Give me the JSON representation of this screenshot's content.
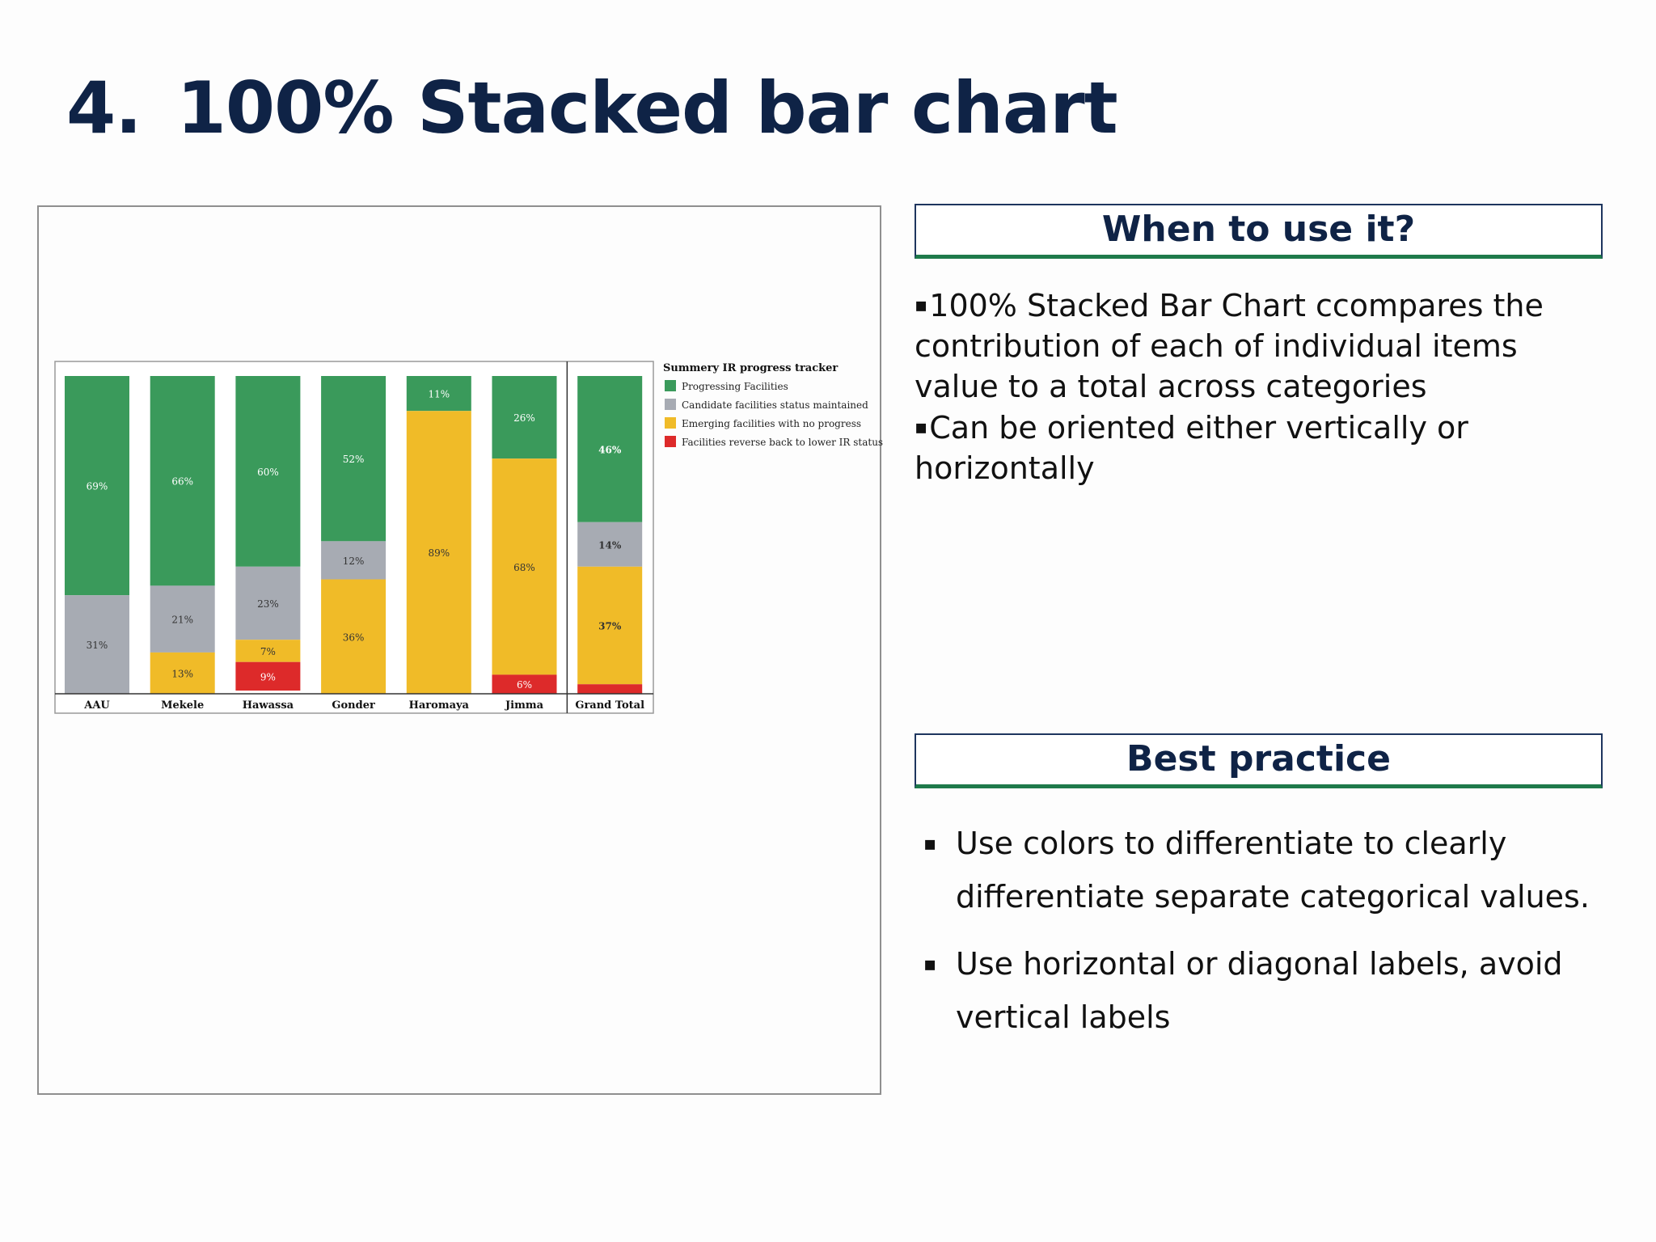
{
  "slide": {
    "number": "4.",
    "title": "100% Stacked bar chart"
  },
  "when": {
    "heading": "When to use it?",
    "bullets": [
      "100% Stacked Bar Chart ccompares the contribution of each of individual items value to a total across categories",
      "Can be oriented either vertically or horizontally"
    ]
  },
  "best": {
    "heading": "Best practice",
    "bullets": [
      "Use colors to differentiate to clearly differentiate separate categorical values.",
      "Use horizontal or diagonal labels, avoid vertical labels"
    ]
  },
  "bullet_glyph": "▪",
  "chart_data": {
    "type": "bar",
    "stacked": "100%",
    "orientation": "vertical",
    "legend_title": "Summery IR progress tracker",
    "legend_position": "right",
    "categories": [
      "AAU",
      "Mekele",
      "Hawassa",
      "Gonder",
      "Haromaya",
      "Jimma",
      "Grand Total"
    ],
    "series": [
      {
        "name": "Progressing Facilities",
        "color": "#3a9a5b",
        "values": [
          69,
          66,
          60,
          52,
          11,
          26,
          46
        ]
      },
      {
        "name": "Candidate facilities status maintained",
        "color": "#a7abb3",
        "values": [
          31,
          21,
          23,
          12,
          0,
          0,
          14
        ]
      },
      {
        "name": "Emerging facilities with no progress",
        "color": "#f0bb28",
        "values": [
          0,
          13,
          7,
          36,
          89,
          68,
          37
        ]
      },
      {
        "name": "Facilities reverse back to lower IR status",
        "color": "#dd2a2a",
        "values": [
          0,
          0,
          9,
          0,
          0,
          6,
          3
        ]
      }
    ],
    "data_labels": [
      [
        "69%",
        "31%",
        "",
        ""
      ],
      [
        "66%",
        "21%",
        "13%",
        ""
      ],
      [
        "60%",
        "23%",
        "7%",
        "9%"
      ],
      [
        "52%",
        "12%",
        "36%",
        ""
      ],
      [
        "11%",
        "",
        "89%",
        ""
      ],
      [
        "26%",
        "",
        "68%",
        "6%"
      ],
      [
        "46%",
        "14%",
        "37%",
        ""
      ]
    ],
    "grid": false
  }
}
